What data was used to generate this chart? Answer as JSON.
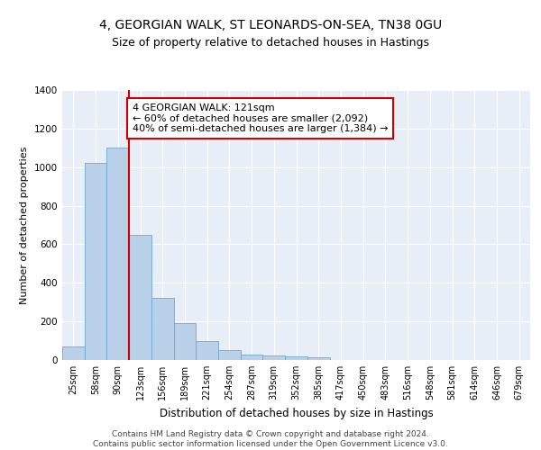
{
  "title1": "4, GEORGIAN WALK, ST LEONARDS-ON-SEA, TN38 0GU",
  "title2": "Size of property relative to detached houses in Hastings",
  "xlabel": "Distribution of detached houses by size in Hastings",
  "ylabel": "Number of detached properties",
  "categories": [
    "25sqm",
    "58sqm",
    "90sqm",
    "123sqm",
    "156sqm",
    "189sqm",
    "221sqm",
    "254sqm",
    "287sqm",
    "319sqm",
    "352sqm",
    "385sqm",
    "417sqm",
    "450sqm",
    "483sqm",
    "516sqm",
    "548sqm",
    "581sqm",
    "614sqm",
    "646sqm",
    "679sqm"
  ],
  "values": [
    70,
    1020,
    1100,
    650,
    320,
    190,
    100,
    50,
    30,
    25,
    20,
    15,
    0,
    0,
    0,
    0,
    0,
    0,
    0,
    0,
    0
  ],
  "bar_color": "#b8d0e8",
  "bar_edge_color": "#6fa8d4",
  "vline_color": "#cc0000",
  "annotation_text": "4 GEORGIAN WALK: 121sqm\n← 60% of detached houses are smaller (2,092)\n40% of semi-detached houses are larger (1,384) →",
  "annotation_box_color": "#ffffff",
  "annotation_box_edge": "#cc0000",
  "ylim": [
    0,
    1400
  ],
  "yticks": [
    0,
    200,
    400,
    600,
    800,
    1000,
    1200,
    1400
  ],
  "background_color": "#e8eef8",
  "footer_text": "Contains HM Land Registry data © Crown copyright and database right 2024.\nContains public sector information licensed under the Open Government Licence v3.0.",
  "title1_fontsize": 10,
  "title2_fontsize": 9,
  "xlabel_fontsize": 8.5,
  "ylabel_fontsize": 8,
  "annotation_fontsize": 8,
  "footer_fontsize": 6.5,
  "tick_fontsize": 7
}
